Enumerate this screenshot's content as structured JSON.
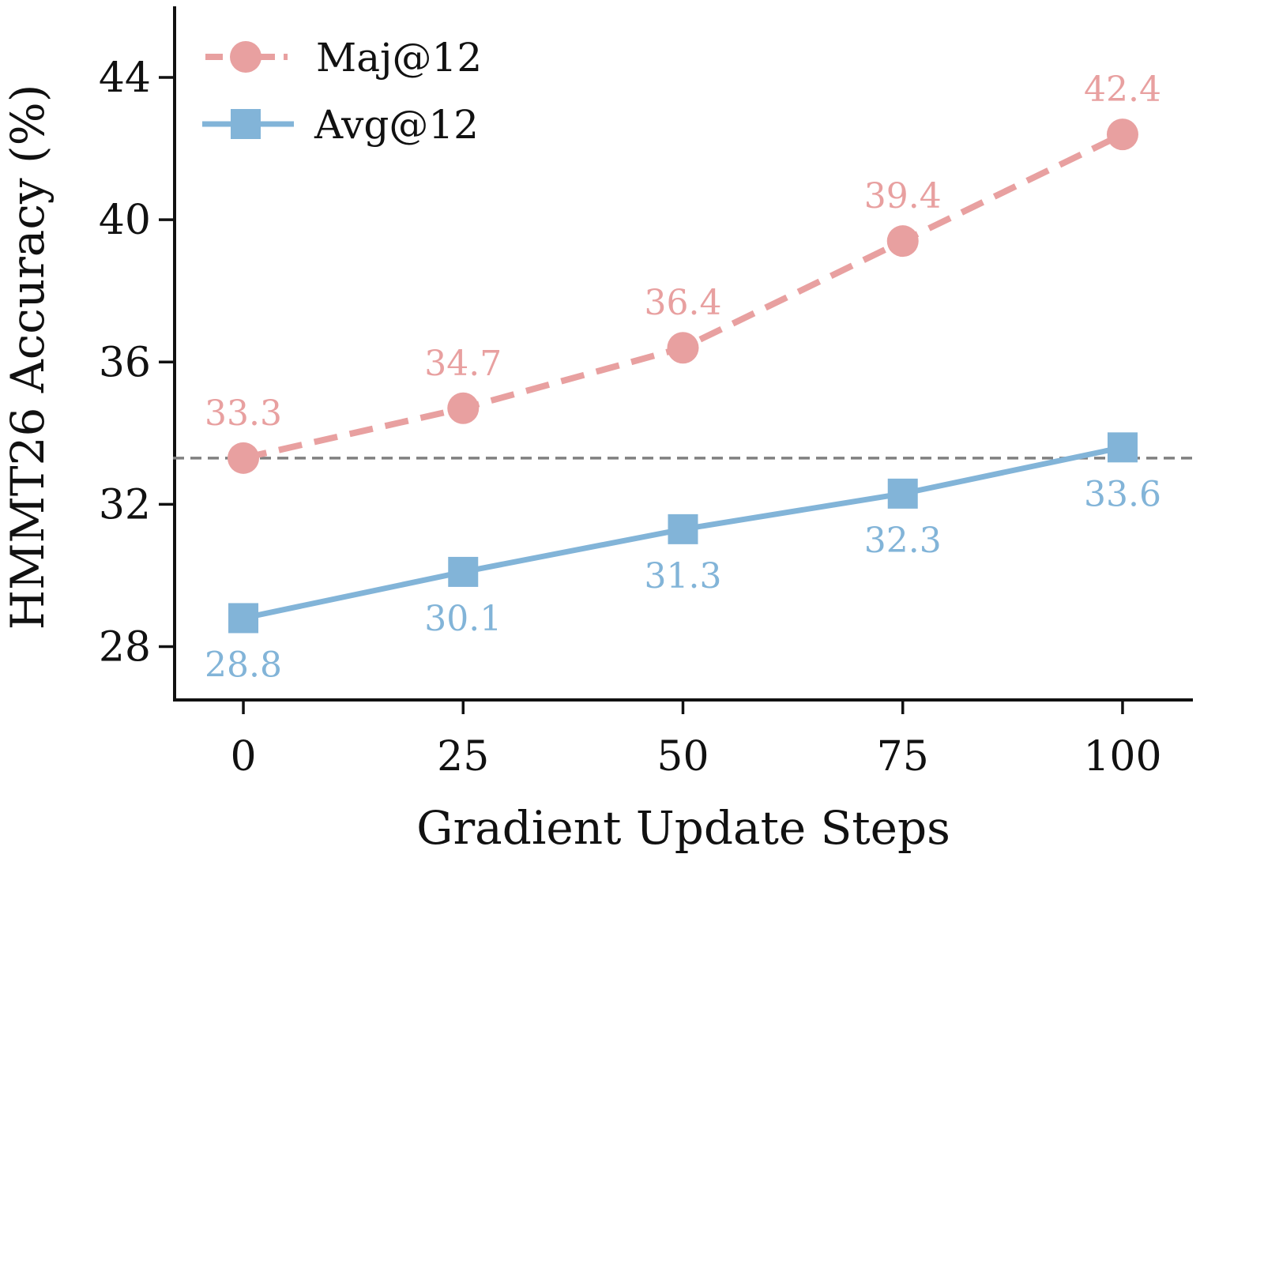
{
  "chart_data": {
    "type": "line",
    "x": [
      0,
      25,
      50,
      75,
      100
    ],
    "xticks": [
      "0",
      "25",
      "50",
      "75",
      "100"
    ],
    "yticks": [
      "28",
      "32",
      "36",
      "40",
      "44"
    ],
    "ytick_values": [
      28,
      32,
      36,
      40,
      44
    ],
    "xlim": [
      -8,
      108
    ],
    "ylim": [
      26.5,
      46.0
    ],
    "xlabel": "Gradient Update Steps",
    "ylabel": "HMMT26 Accuracy (%)",
    "grid": false,
    "legend_position": "top-left",
    "reference_line": {
      "y": 33.3,
      "style": "dashed",
      "color": "#808080"
    },
    "series": [
      {
        "name": "Maj@12",
        "values": [
          33.3,
          34.7,
          36.4,
          39.4,
          42.4
        ],
        "labels": [
          "33.3",
          "34.7",
          "36.4",
          "39.4",
          "42.4"
        ],
        "color": "#e8a0a0",
        "line_style": "dashed",
        "marker": "circle",
        "label_position": "above"
      },
      {
        "name": "Avg@12",
        "values": [
          28.8,
          30.1,
          31.3,
          32.3,
          33.6
        ],
        "labels": [
          "28.8",
          "30.1",
          "31.3",
          "32.3",
          "33.6"
        ],
        "color": "#82b4d8",
        "line_style": "solid",
        "marker": "square",
        "label_position": "below"
      }
    ]
  }
}
